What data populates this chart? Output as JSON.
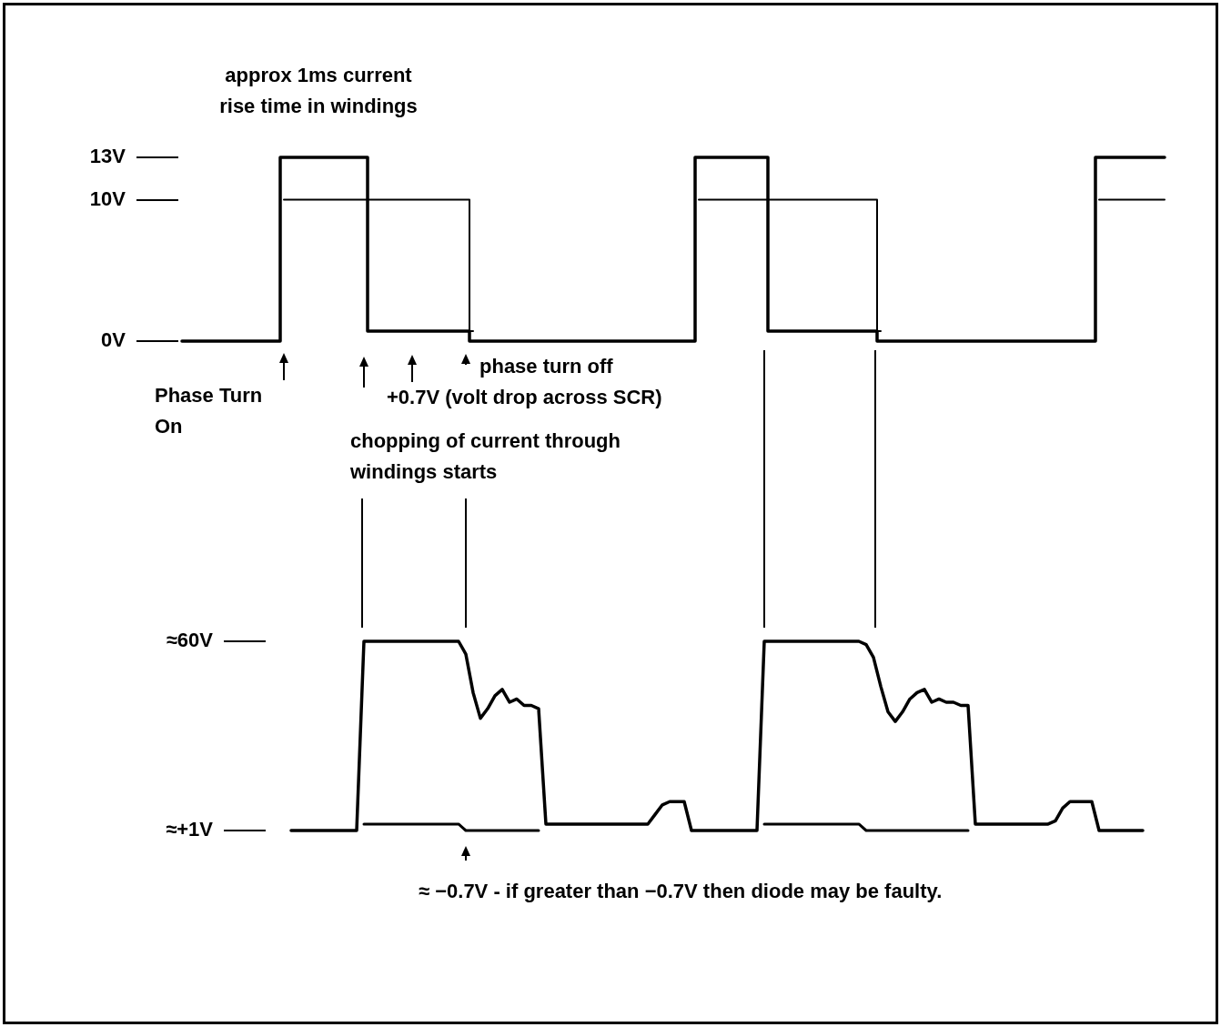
{
  "chart_data": [
    {
      "type": "step",
      "categories": [
        null,
        null,
        null,
        null,
        null,
        null,
        null,
        null,
        null,
        null,
        null,
        null,
        null,
        null,
        null,
        null,
        null,
        null,
        null,
        null,
        null,
        null,
        null,
        null,
        null,
        null,
        null,
        null,
        null,
        null,
        null,
        null,
        null,
        null,
        null,
        null,
        null,
        null,
        null,
        null,
        null,
        null,
        null,
        null,
        null,
        null,
        null,
        null,
        null,
        null,
        null,
        null,
        null,
        null,
        null,
        null,
        null,
        null,
        null,
        null,
        null,
        null,
        null,
        null,
        null,
        null,
        null,
        null,
        null,
        null,
        null,
        null,
        null,
        null,
        null,
        null,
        null,
        null,
        null,
        null,
        null,
        null,
        null,
        null,
        null,
        null,
        null,
        null,
        null,
        null,
        null,
        null,
        null,
        null,
        null,
        null,
        null,
        null,
        null,
        null,
        null,
        null,
        null,
        null,
        null,
        null,
        null,
        null,
        null,
        null,
        null,
        null,
        null,
        null,
        null,
        null,
        null,
        null,
        null,
        null,
        null,
        null,
        null,
        null,
        null,
        null,
        null,
        null,
        null,
        null,
        null,
        null,
        null,
        null,
        null,
        null
      ],
      "series": [
        {
          "color": "#000000",
          "values": [
            0,
            0,
            0,
            0,
            0,
            0,
            0,
            0,
            0,
            0,
            0,
            0,
            0,
            0,
            13,
            13,
            13,
            13,
            13,
            13,
            13,
            13,
            13,
            13,
            13,
            13,
            0.7,
            0.7,
            0.7,
            0.7,
            0.7,
            0.7,
            0.7,
            0.7,
            0.7,
            0.7,
            0.7,
            0.7,
            0.7,
            0.7,
            0,
            0,
            0,
            0,
            0,
            0,
            0,
            0,
            0,
            0,
            0,
            0,
            0,
            0,
            0,
            0,
            0,
            0,
            0,
            0,
            0,
            0,
            0,
            0,
            0,
            0,
            0,
            0,
            0,
            0,
            0,
            13,
            13,
            13,
            13,
            13,
            13,
            13,
            13,
            13,
            13,
            0.7,
            0.7,
            0.7,
            0.7,
            0.7,
            0.7,
            0.7,
            0.7,
            0.7,
            0.7,
            0.7,
            0.7,
            0.7,
            0.7,
            0.7,
            0,
            0,
            0,
            0,
            0,
            0,
            0,
            0,
            0,
            0,
            0,
            0,
            0,
            0,
            0,
            0,
            0,
            0,
            0,
            0,
            0,
            0,
            0,
            0,
            0,
            0,
            0,
            0,
            0,
            0,
            13,
            13,
            13,
            13,
            13,
            13,
            13,
            13,
            13,
            13
          ]
        },
        {
          "color": "#000000",
          "values": [
            null,
            null,
            null,
            null,
            null,
            null,
            null,
            null,
            null,
            null,
            null,
            null,
            null,
            null,
            10,
            10,
            10,
            10,
            10,
            10,
            10,
            10,
            10,
            10,
            10,
            10,
            10,
            10,
            10,
            10,
            10,
            10,
            10,
            10,
            10,
            10,
            10,
            10,
            10,
            10,
            0.7,
            null,
            null,
            null,
            null,
            null,
            null,
            null,
            null,
            null,
            null,
            null,
            null,
            null,
            null,
            null,
            null,
            null,
            null,
            null,
            null,
            null,
            null,
            null,
            null,
            null,
            null,
            null,
            null,
            null,
            null,
            10,
            10,
            10,
            10,
            10,
            10,
            10,
            10,
            10,
            10,
            10,
            10,
            10,
            10,
            10,
            10,
            10,
            10,
            10,
            10,
            10,
            10,
            10,
            10,
            10,
            0.7,
            null,
            null,
            null,
            null,
            null,
            null,
            null,
            null,
            null,
            null,
            null,
            null,
            null,
            null,
            null,
            null,
            null,
            null,
            null,
            null,
            null,
            null,
            null,
            null,
            null,
            null,
            null,
            null,
            null,
            10,
            10,
            10,
            10,
            10,
            10,
            10,
            10,
            10,
            10
          ]
        }
      ],
      "ylim": [
        0,
        13
      ],
      "yticks": [
        {
          "value": 0,
          "label": "0V"
        },
        {
          "value": 10,
          "label": "10V"
        },
        {
          "value": 13,
          "label": "13V"
        }
      ],
      "tick_labels": "y",
      "annotations": [
        "approx 1ms current rise time in windings",
        "Phase Turn On",
        "phase turn off",
        "+0.7V (volt drop across SCR)",
        "chopping of current through windings starts"
      ]
    },
    {
      "type": "line",
      "categories": [
        null,
        null,
        null,
        null,
        null,
        null,
        null,
        null,
        null,
        null,
        null,
        null,
        null,
        null,
        null,
        null,
        null,
        null,
        null,
        null,
        null,
        null,
        null,
        null,
        null,
        null,
        null,
        null,
        null,
        null,
        null,
        null,
        null,
        null,
        null,
        null,
        null,
        null,
        null,
        null,
        null,
        null,
        null,
        null,
        null,
        null,
        null,
        null,
        null,
        null,
        null,
        null,
        null,
        null,
        null,
        null,
        null,
        null,
        null,
        null,
        null,
        null,
        null,
        null,
        null,
        null,
        null,
        null,
        null,
        null,
        null,
        null,
        null,
        null,
        null,
        null,
        null,
        null,
        null,
        null,
        null,
        null,
        null,
        null,
        null,
        null,
        null,
        null,
        null,
        null,
        null,
        null,
        null,
        null,
        null,
        null,
        null,
        null,
        null,
        null,
        null,
        null,
        null,
        null,
        null,
        null,
        null,
        null,
        null,
        null,
        null,
        null,
        null,
        null,
        null,
        null,
        null,
        null,
        null,
        null,
        null,
        null,
        null
      ],
      "series": [
        {
          "color": "#000000",
          "values": [
            null,
            null,
            null,
            1,
            1,
            1,
            1,
            1,
            1,
            1,
            1,
            1,
            1,
            60,
            60,
            60,
            60,
            60,
            60,
            60,
            60,
            60,
            60,
            60,
            60,
            60,
            60,
            56,
            44,
            36,
            39,
            43,
            45,
            41,
            42,
            40,
            40,
            39,
            3,
            3,
            3,
            3,
            3,
            3,
            3,
            3,
            3,
            3,
            3,
            3,
            3,
            3,
            3,
            6,
            9,
            10,
            10,
            10,
            1,
            1,
            1,
            1,
            1,
            1,
            1,
            1,
            1,
            1,
            60,
            60,
            60,
            60,
            60,
            60,
            60,
            60,
            60,
            60,
            60,
            60,
            60,
            60,
            59,
            55,
            46,
            38,
            35,
            38,
            42,
            44,
            45,
            41,
            42,
            41,
            41,
            40,
            40,
            3,
            3,
            3,
            3,
            3,
            3,
            3,
            3,
            3,
            3,
            3,
            4,
            8,
            10,
            10,
            10,
            10,
            1,
            1,
            1,
            1,
            1,
            1,
            1,
            null,
            null
          ]
        },
        {
          "color": "#000000",
          "values": [
            null,
            null,
            null,
            null,
            null,
            null,
            null,
            null,
            null,
            null,
            null,
            null,
            null,
            3,
            3,
            3,
            3,
            3,
            3,
            3,
            3,
            3,
            3,
            3,
            3,
            3,
            3,
            1,
            1,
            1,
            1,
            1,
            1,
            1,
            1,
            1,
            1,
            1,
            null,
            null,
            null,
            null,
            null,
            null,
            null,
            null,
            null,
            null,
            null,
            null,
            null,
            null,
            null,
            null,
            null,
            null,
            null,
            null,
            null,
            null,
            null,
            null,
            null,
            null,
            null,
            null,
            null,
            null,
            3,
            3,
            3,
            3,
            3,
            3,
            3,
            3,
            3,
            3,
            3,
            3,
            3,
            3,
            1,
            1,
            1,
            1,
            1,
            1,
            1,
            1,
            1,
            1,
            1,
            1,
            1,
            1,
            1,
            null,
            null,
            null,
            null,
            null,
            null,
            null,
            null,
            null,
            null,
            null,
            null,
            null,
            null,
            null,
            null,
            null,
            null,
            null,
            null,
            null,
            null,
            null,
            null,
            null,
            null
          ]
        }
      ],
      "ylim": [
        1,
        60
      ],
      "yticks": [
        {
          "value": 1,
          "label": "≈+1V"
        },
        {
          "value": 60,
          "label": "≈60V"
        }
      ],
      "tick_labels": "y",
      "annotations": [
        "≈ −0.7V - if greater than −0.7V then diode may be faulty."
      ]
    }
  ]
}
